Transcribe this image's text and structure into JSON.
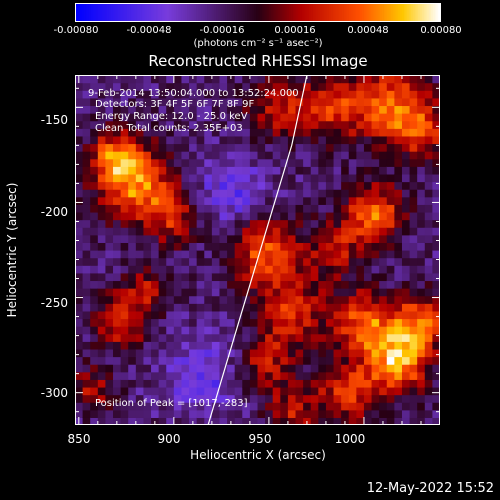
{
  "chart_data": {
    "type": "heatmap",
    "title": "Reconstructed RHESSI Image",
    "xlabel": "Heliocentric X (arcsec)",
    "ylabel": "Heliocentric Y (arcsec)",
    "xlim": [
      848,
      1040
    ],
    "ylim": [
      -317,
      -133
    ],
    "x_ticks": [
      850,
      900,
      950,
      1000
    ],
    "y_ticks": [
      -150,
      -200,
      -250,
      -300
    ],
    "colorbar": {
      "ticks": [
        "-0.00080",
        "-0.00048",
        "-0.00016",
        "0.00016",
        "0.00048",
        "0.00080"
      ],
      "unit": "(photons cm⁻² s⁻¹ asec⁻²)",
      "range": [
        -0.0008,
        0.0008
      ]
    },
    "annotations": {
      "time_range": "9-Feb-2014 13:50:04.000 to 13:52:24.000",
      "detectors": "Detectors: 3F 4F 5F 6F 7F 8F 9F",
      "energy": "Energy Range: 12.0 - 25.0 keV",
      "method": "Clean     Total counts: 2.35E+03",
      "peak": "Position of Peak = [1017,-283]"
    },
    "peak": {
      "x": 1017,
      "y": -283
    },
    "limb_curve": [
      [
        918,
        -317
      ],
      [
        935,
        -260
      ],
      [
        950,
        -210
      ],
      [
        962,
        -170
      ],
      [
        970,
        -133
      ]
    ],
    "sources": [
      {
        "x": 880,
        "y": -190,
        "amp": 0.0007,
        "s": 14
      },
      {
        "x": 868,
        "y": -175,
        "amp": 0.0005,
        "s": 9
      },
      {
        "x": 900,
        "y": -208,
        "amp": 0.0004,
        "s": 10
      },
      {
        "x": 873,
        "y": -262,
        "amp": 0.0005,
        "s": 10
      },
      {
        "x": 885,
        "y": -245,
        "amp": 0.00035,
        "s": 8
      },
      {
        "x": 857,
        "y": -298,
        "amp": 0.0004,
        "s": 8
      },
      {
        "x": 948,
        "y": -225,
        "amp": 0.0006,
        "s": 13
      },
      {
        "x": 962,
        "y": -258,
        "amp": 0.0005,
        "s": 13
      },
      {
        "x": 948,
        "y": -285,
        "amp": 0.0004,
        "s": 10
      },
      {
        "x": 955,
        "y": -150,
        "amp": 0.0004,
        "s": 12
      },
      {
        "x": 985,
        "y": -150,
        "amp": 0.0005,
        "s": 12
      },
      {
        "x": 1015,
        "y": -148,
        "amp": 0.0006,
        "s": 13
      },
      {
        "x": 1030,
        "y": -162,
        "amp": 0.0005,
        "s": 10
      },
      {
        "x": 1005,
        "y": -205,
        "amp": 0.00065,
        "s": 11
      },
      {
        "x": 985,
        "y": -225,
        "amp": 0.0004,
        "s": 10
      },
      {
        "x": 1017,
        "y": -283,
        "amp": 0.0008,
        "s": 12
      },
      {
        "x": 1000,
        "y": -262,
        "amp": 0.0006,
        "s": 11
      },
      {
        "x": 1030,
        "y": -262,
        "amp": 0.0006,
        "s": 10
      },
      {
        "x": 990,
        "y": -300,
        "amp": 0.0005,
        "s": 11
      },
      {
        "x": 962,
        "y": -310,
        "amp": 0.0004,
        "s": 9
      },
      {
        "x": 930,
        "y": -195,
        "amp": -0.0003,
        "s": 14
      },
      {
        "x": 915,
        "y": -290,
        "amp": -0.0003,
        "s": 14
      }
    ]
  },
  "timestamp": "12-May-2022 15:52"
}
